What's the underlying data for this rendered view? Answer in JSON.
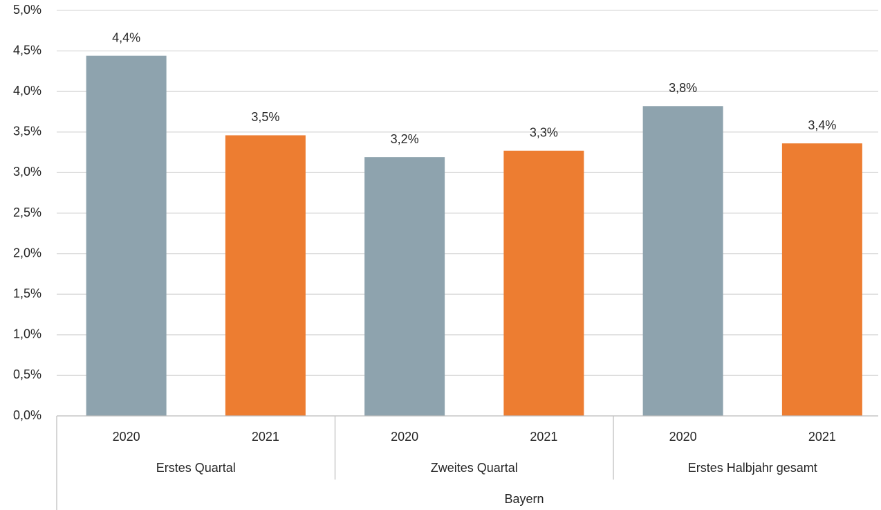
{
  "chart_data": {
    "type": "bar",
    "categories": [
      "Erstes Quartal",
      "Zweites Quartal",
      "Erstes Halbjahr gesamt"
    ],
    "super_category": "Bayern",
    "series": [
      {
        "name": "2020",
        "color": "#8ea3ae",
        "values": [
          4.44,
          3.19,
          3.82
        ],
        "value_labels": [
          "4,4%",
          "3,2%",
          "3,8%"
        ]
      },
      {
        "name": "2021",
        "color": "#ed7d31",
        "values": [
          3.46,
          3.27,
          3.36
        ],
        "value_labels": [
          "3,5%",
          "3,3%",
          "3,4%"
        ]
      }
    ],
    "ylim": [
      0,
      5
    ],
    "yticks": [
      {
        "value": 0,
        "label": "0,0%"
      },
      {
        "value": 0.5,
        "label": "0,5%"
      },
      {
        "value": 1,
        "label": "1,0%"
      },
      {
        "value": 1.5,
        "label": "1,5%"
      },
      {
        "value": 2,
        "label": "2,0%"
      },
      {
        "value": 2.5,
        "label": "2,5%"
      },
      {
        "value": 3,
        "label": "3,0%"
      },
      {
        "value": 3.5,
        "label": "3,5%"
      },
      {
        "value": 4,
        "label": "4,0%"
      },
      {
        "value": 4.5,
        "label": "4,5%"
      },
      {
        "value": 5,
        "label": "5,0%"
      }
    ],
    "grid": true
  }
}
